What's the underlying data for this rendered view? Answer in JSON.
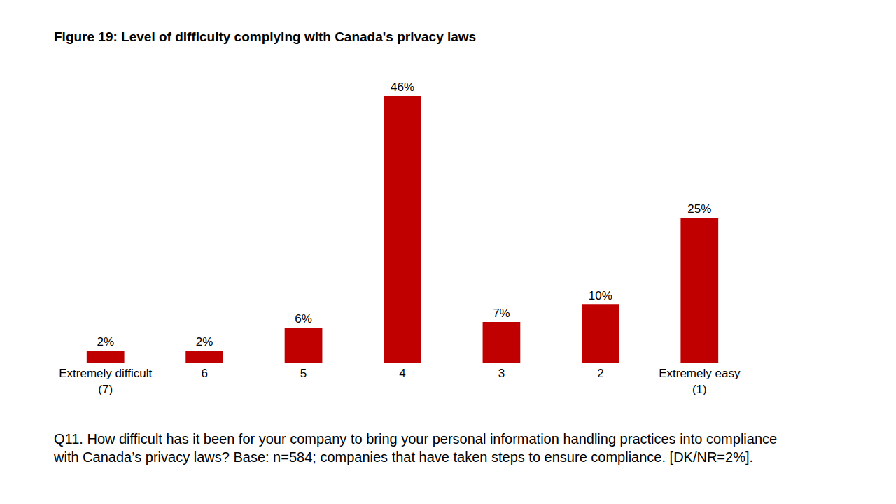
{
  "chart_data": {
    "type": "bar",
    "title": "Figure 19: Level of difficulty complying with Canada's privacy laws",
    "categories": [
      "Extremely difficult (7)",
      "6",
      "5",
      "4",
      "3",
      "2",
      "Extremely easy (1)"
    ],
    "values": [
      2,
      2,
      6,
      46,
      7,
      10,
      25
    ],
    "value_labels": [
      "2%",
      "2%",
      "6%",
      "46%",
      "7%",
      "10%",
      "25%"
    ],
    "color": "#c00000",
    "ylim": [
      0,
      50
    ],
    "data_labels": true,
    "tick_labels": "x",
    "grid": false,
    "annotations": [
      "Q11. How difficult has it been for your company to bring your personal information handling practices into compliance with Canada’s privacy laws? Base: n=584; companies that have taken steps to ensure compliance. [DK/NR=2%]."
    ]
  }
}
